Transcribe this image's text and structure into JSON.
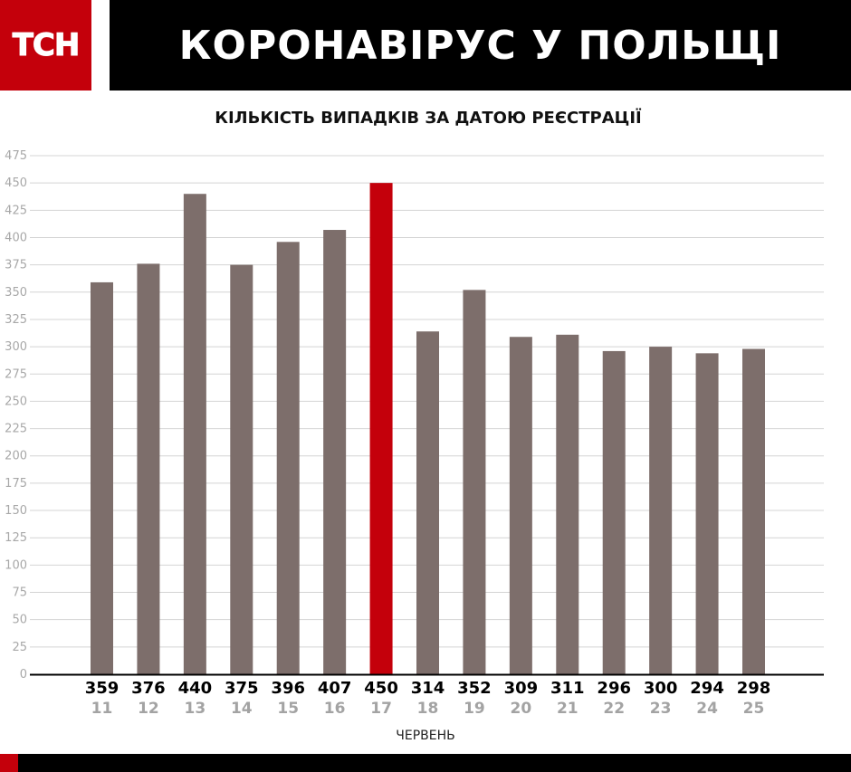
{
  "header": {
    "logo_text": "ТСН",
    "title": "КОРОНАВІРУС У ПОЛЬЩІ"
  },
  "colors": {
    "brand_red": "#c4000b",
    "bar_gray": "#7d6e6b",
    "highlight_red": "#c4000b",
    "header_black": "#000000",
    "grid": "#d4d4d4",
    "tick_label": "#a8a8a8",
    "day_label": "#a3a3a3"
  },
  "chart_data": {
    "type": "bar",
    "title": "КІЛЬКІСТЬ ВИПАДКІВ ЗА ДАТОЮ РЕЄСТРАЦІЇ",
    "xlabel": "ЧЕРВЕНЬ",
    "ylabel": "",
    "categories": [
      "11",
      "12",
      "13",
      "14",
      "15",
      "16",
      "17",
      "18",
      "19",
      "20",
      "21",
      "22",
      "23",
      "24",
      "25"
    ],
    "values": [
      359,
      376,
      440,
      375,
      396,
      407,
      450,
      314,
      352,
      309,
      311,
      296,
      300,
      294,
      298
    ],
    "highlight_index": 6,
    "ylim": [
      0,
      475
    ],
    "yticks": [
      0,
      25,
      50,
      75,
      100,
      125,
      150,
      175,
      200,
      225,
      250,
      275,
      300,
      325,
      350,
      375,
      400,
      425,
      450,
      475
    ],
    "grid": true
  }
}
